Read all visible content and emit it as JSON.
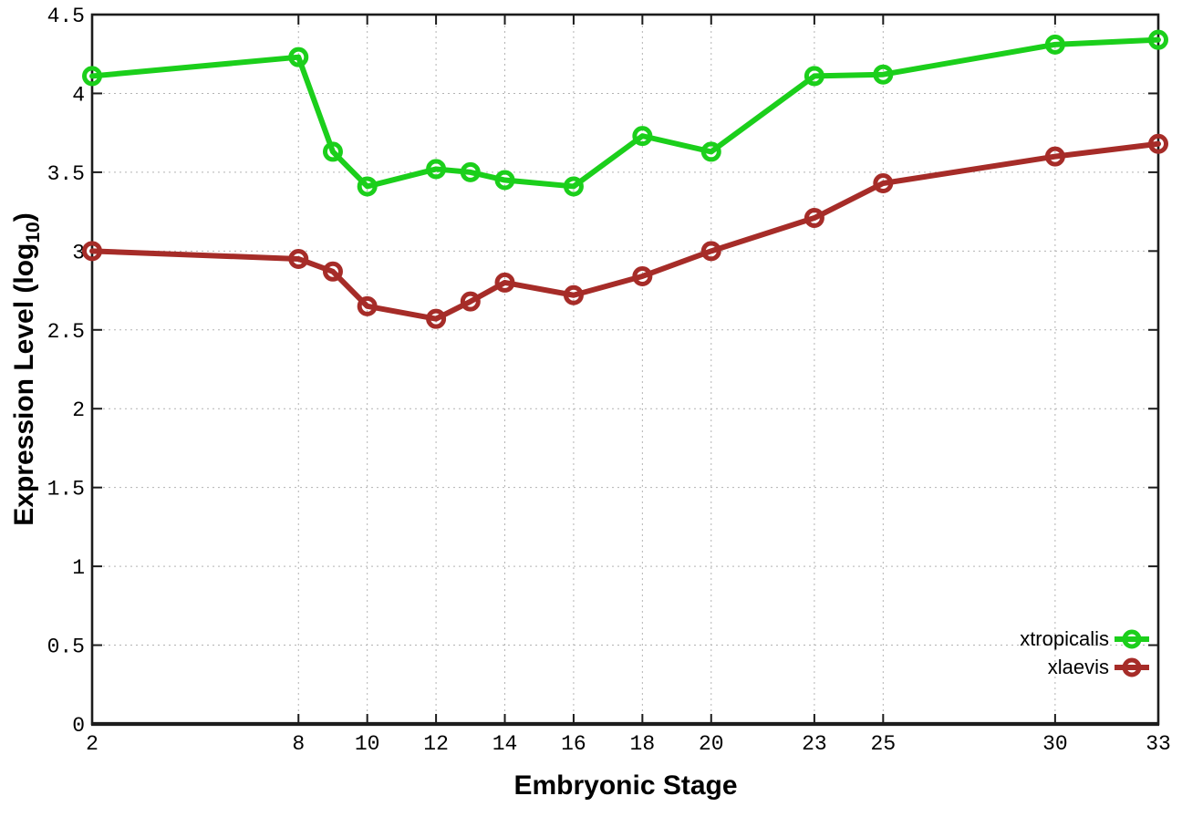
{
  "chart_data": {
    "type": "line",
    "title": "",
    "xlabel": "Embryonic Stage",
    "ylabel": "Expression Level (log10)",
    "ylabel_parts": {
      "prefix": "Expression Level (log",
      "sub": "10",
      "suffix": ")"
    },
    "x": [
      2,
      8,
      9,
      10,
      12,
      13,
      14,
      16,
      18,
      20,
      23,
      25,
      30,
      33
    ],
    "series": [
      {
        "name": "xtropicalis",
        "color": "#1bcf1b",
        "values": [
          4.11,
          4.23,
          3.63,
          3.41,
          3.52,
          3.5,
          3.45,
          3.41,
          3.73,
          3.63,
          4.11,
          4.12,
          4.31,
          4.34
        ]
      },
      {
        "name": "xlaevis",
        "color": "#a62c28",
        "values": [
          3.0,
          2.95,
          2.87,
          2.65,
          2.57,
          2.68,
          2.8,
          2.72,
          2.84,
          3.0,
          3.21,
          3.43,
          3.6,
          3.68
        ]
      }
    ],
    "xlim": [
      2,
      33
    ],
    "ylim": [
      0,
      4.5
    ],
    "x_tick_values": [
      2,
      8,
      10,
      12,
      14,
      16,
      18,
      20,
      23,
      25,
      30,
      33
    ],
    "x_tick_labels": [
      "2",
      "8",
      "10",
      "12",
      "14",
      "16",
      "18",
      "20",
      "23",
      "25",
      "30",
      "33"
    ],
    "y_tick_values": [
      0,
      0.5,
      1,
      1.5,
      2,
      2.5,
      3,
      3.5,
      4,
      4.5
    ],
    "y_tick_labels": [
      "0",
      "0.5",
      "1",
      "1.5",
      "2",
      "2.5",
      "3",
      "3.5",
      "4",
      "4.5"
    ],
    "grid": true,
    "marker": "open-circle",
    "legend": {
      "position": "bottom-right-inside",
      "entries": [
        "xtropicalis",
        "xlaevis"
      ]
    },
    "colors": {
      "background": "#ffffff",
      "border": "#1c1c1c",
      "grid": "#b3b3b3",
      "tick_text": "#000000",
      "series_green": "#1bcf1b",
      "series_dark_red": "#a62c28"
    }
  }
}
